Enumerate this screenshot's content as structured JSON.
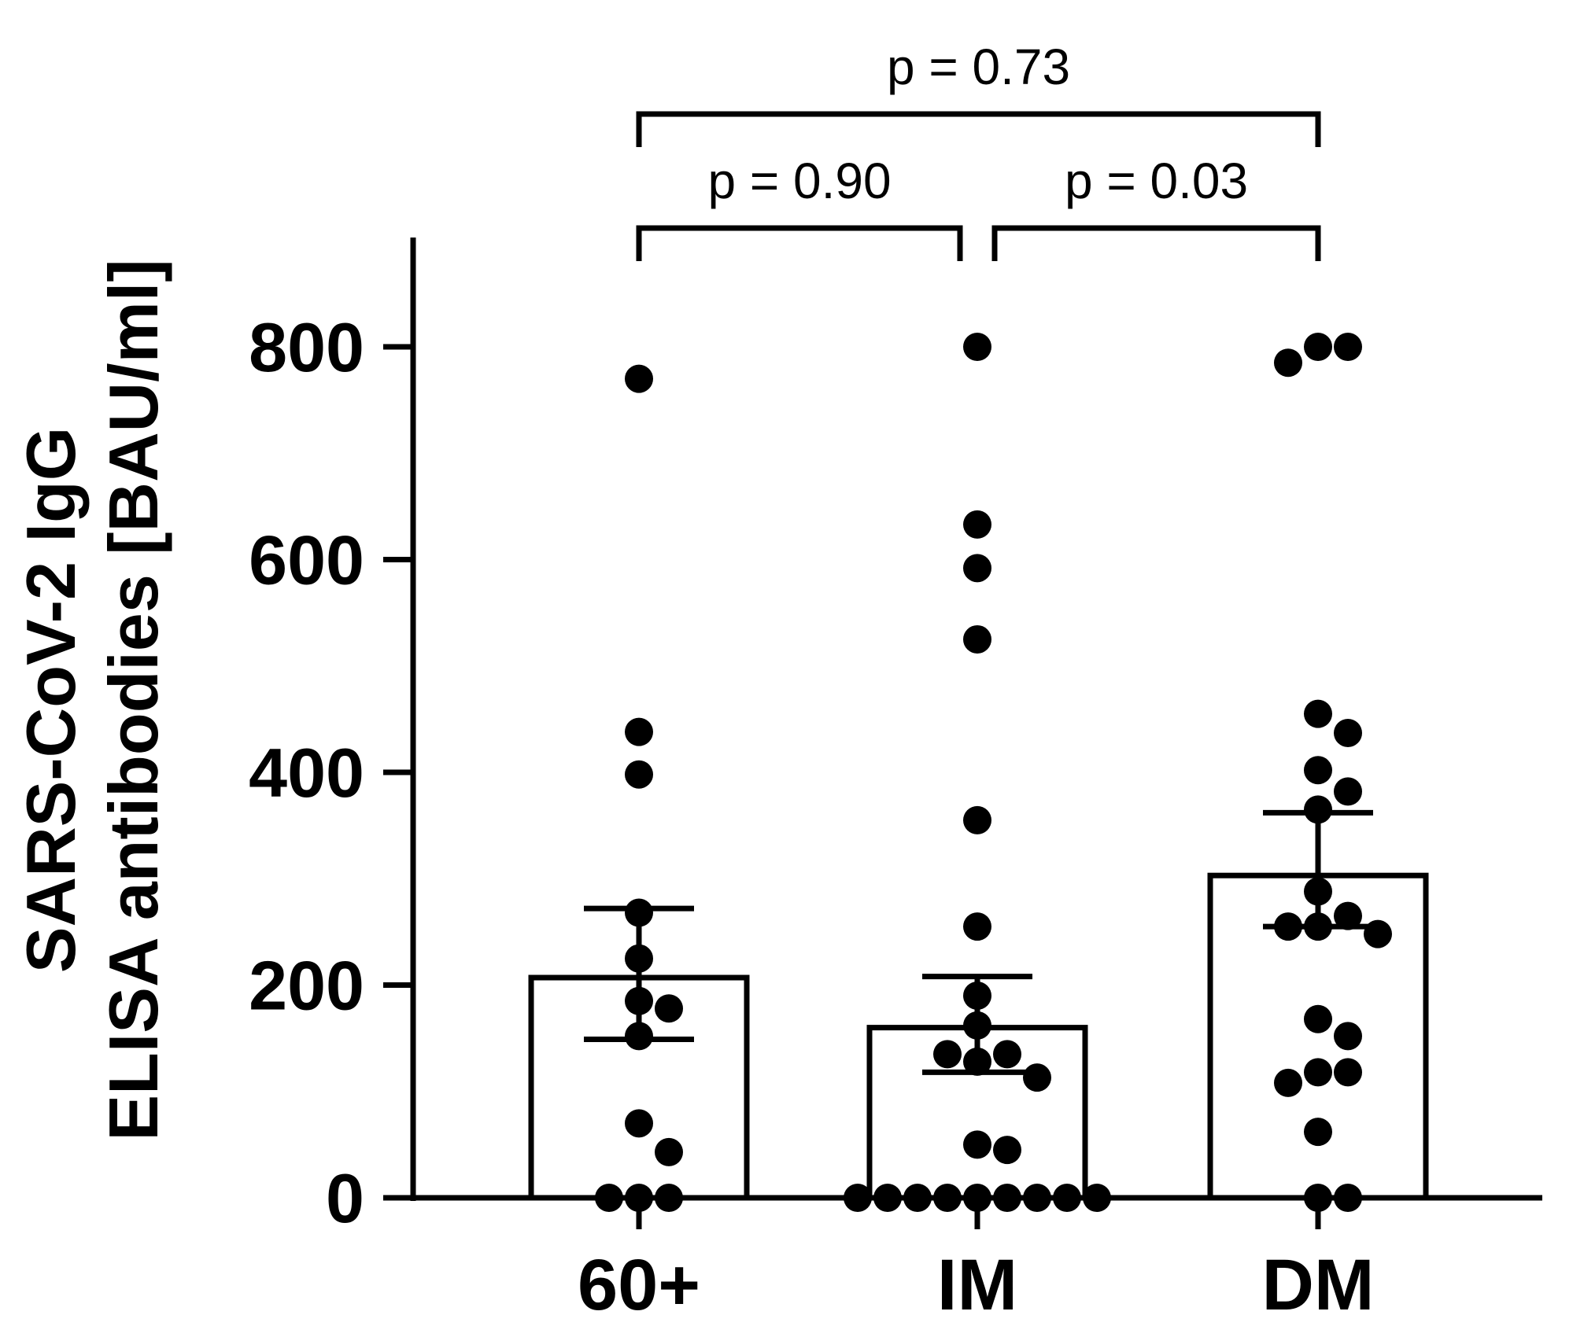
{
  "chart_data": {
    "type": "bar",
    "categories": [
      "60+",
      "IM",
      "DM"
    ],
    "bar_values": [
      207,
      160,
      303
    ],
    "error_bars": [
      {
        "low": 149,
        "high": 272
      },
      {
        "low": 118,
        "high": 208
      },
      {
        "low": 255,
        "high": 362
      }
    ],
    "points": [
      [
        770,
        438,
        398,
        268,
        225,
        185,
        178,
        152,
        70,
        43,
        0,
        0,
        0
      ],
      [
        800,
        633,
        592,
        525,
        355,
        255,
        190,
        162,
        135,
        135,
        128,
        113,
        50,
        45,
        0,
        0,
        0,
        0,
        0,
        0,
        0,
        0,
        0
      ],
      [
        800,
        785,
        800,
        455,
        437,
        402,
        382,
        365,
        288,
        265,
        255,
        255,
        248,
        168,
        152,
        118,
        118,
        108,
        62,
        0,
        0
      ]
    ],
    "y_ticks": [
      0,
      200,
      400,
      600,
      800
    ],
    "y_tick_labels": [
      "0",
      "200",
      "400",
      "600",
      "800"
    ],
    "ylim": [
      0,
      900
    ],
    "ylabel_line1": "SARS-CoV-2 IgG",
    "ylabel_line2": "ELISA antibodies [BAU/ml]",
    "xlabel": "",
    "title": "",
    "comparisons": [
      {
        "from": 0,
        "to": 1,
        "label": "p = 0.90",
        "level": 1
      },
      {
        "from": 1,
        "to": 2,
        "label": "p = 0.03",
        "level": 1
      },
      {
        "from": 0,
        "to": 2,
        "label": "p = 0.73",
        "level": 2
      }
    ],
    "colors": {
      "bar_fill": "#ffffff",
      "stroke": "#000000",
      "point": "#000000"
    }
  }
}
